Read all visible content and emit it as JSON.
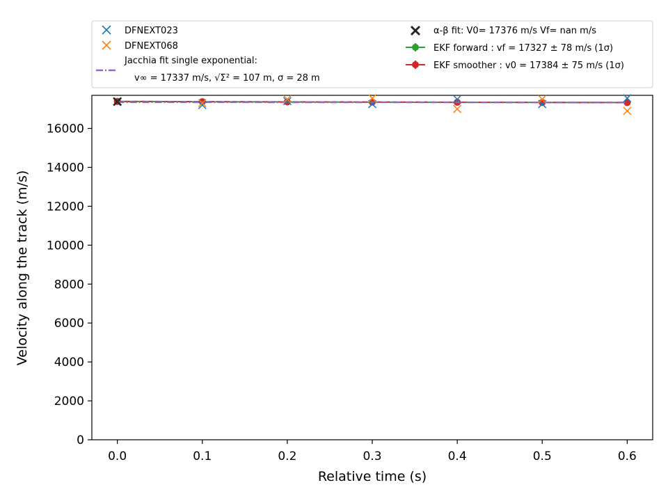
{
  "chart_data": {
    "type": "scatter",
    "xlabel": "Relative time (s)",
    "ylabel": "Velocity along the track (m/s)",
    "xlim": [
      -0.03,
      0.63
    ],
    "ylim": [
      0,
      17700
    ],
    "x_ticks": [
      0.0,
      0.1,
      0.2,
      0.3,
      0.4,
      0.5,
      0.6
    ],
    "x_tick_labels": [
      "0.0",
      "0.1",
      "0.2",
      "0.3",
      "0.4",
      "0.5",
      "0.6"
    ],
    "y_ticks": [
      0,
      2000,
      4000,
      6000,
      8000,
      10000,
      12000,
      14000,
      16000
    ],
    "y_tick_labels": [
      "0",
      "2000",
      "4000",
      "6000",
      "8000",
      "10000",
      "12000",
      "14000",
      "16000"
    ],
    "grid": false,
    "legend_placement": "top, above plot",
    "series": [
      {
        "name": "DFNEXT023",
        "marker": "x",
        "color": "#1f77b4",
        "x": [
          0.0,
          0.1,
          0.2,
          0.3,
          0.4,
          0.5,
          0.6
        ],
        "y": [
          17390,
          17200,
          17400,
          17250,
          17500,
          17250,
          17550
        ]
      },
      {
        "name": "DFNEXT068",
        "marker": "x",
        "color": "#ff7f0e",
        "x": [
          0.0,
          0.1,
          0.2,
          0.3,
          0.4,
          0.5,
          0.6
        ],
        "y": [
          17380,
          17300,
          17500,
          17550,
          17000,
          17500,
          16900
        ]
      },
      {
        "name": "Jacchia fit single exponential:",
        "name_line2": "v∞ = 17337 m/s, √Σ² = 107 m, σ = 28 m",
        "line": "dashdot",
        "color": "#9467bd",
        "x": [
          0.0,
          0.6
        ],
        "y": [
          17345,
          17335
        ]
      },
      {
        "name": "α-β fit: V0= 17376 m/s   Vf= nan m/s",
        "marker": "X",
        "color": "#262626",
        "x": [
          0.0
        ],
        "y": [
          17376
        ]
      },
      {
        "name": "EKF forward : vf =  17327 ± 78 m/s (1σ)",
        "marker": "o",
        "line": "solid",
        "color": "#2ca02c",
        "x": [
          0.0,
          0.1,
          0.2,
          0.3,
          0.4,
          0.5,
          0.6
        ],
        "y": [
          17390,
          17370,
          17360,
          17350,
          17340,
          17335,
          17327
        ]
      },
      {
        "name": "EKF smoother : v0 =  17384 ± 75 m/s (1σ)",
        "marker": "o",
        "line": "dashed",
        "color": "#d62728",
        "x": [
          0.0,
          0.1,
          0.2,
          0.3,
          0.4,
          0.5,
          0.6
        ],
        "y": [
          17384,
          17375,
          17365,
          17355,
          17345,
          17335,
          17325
        ]
      }
    ]
  }
}
